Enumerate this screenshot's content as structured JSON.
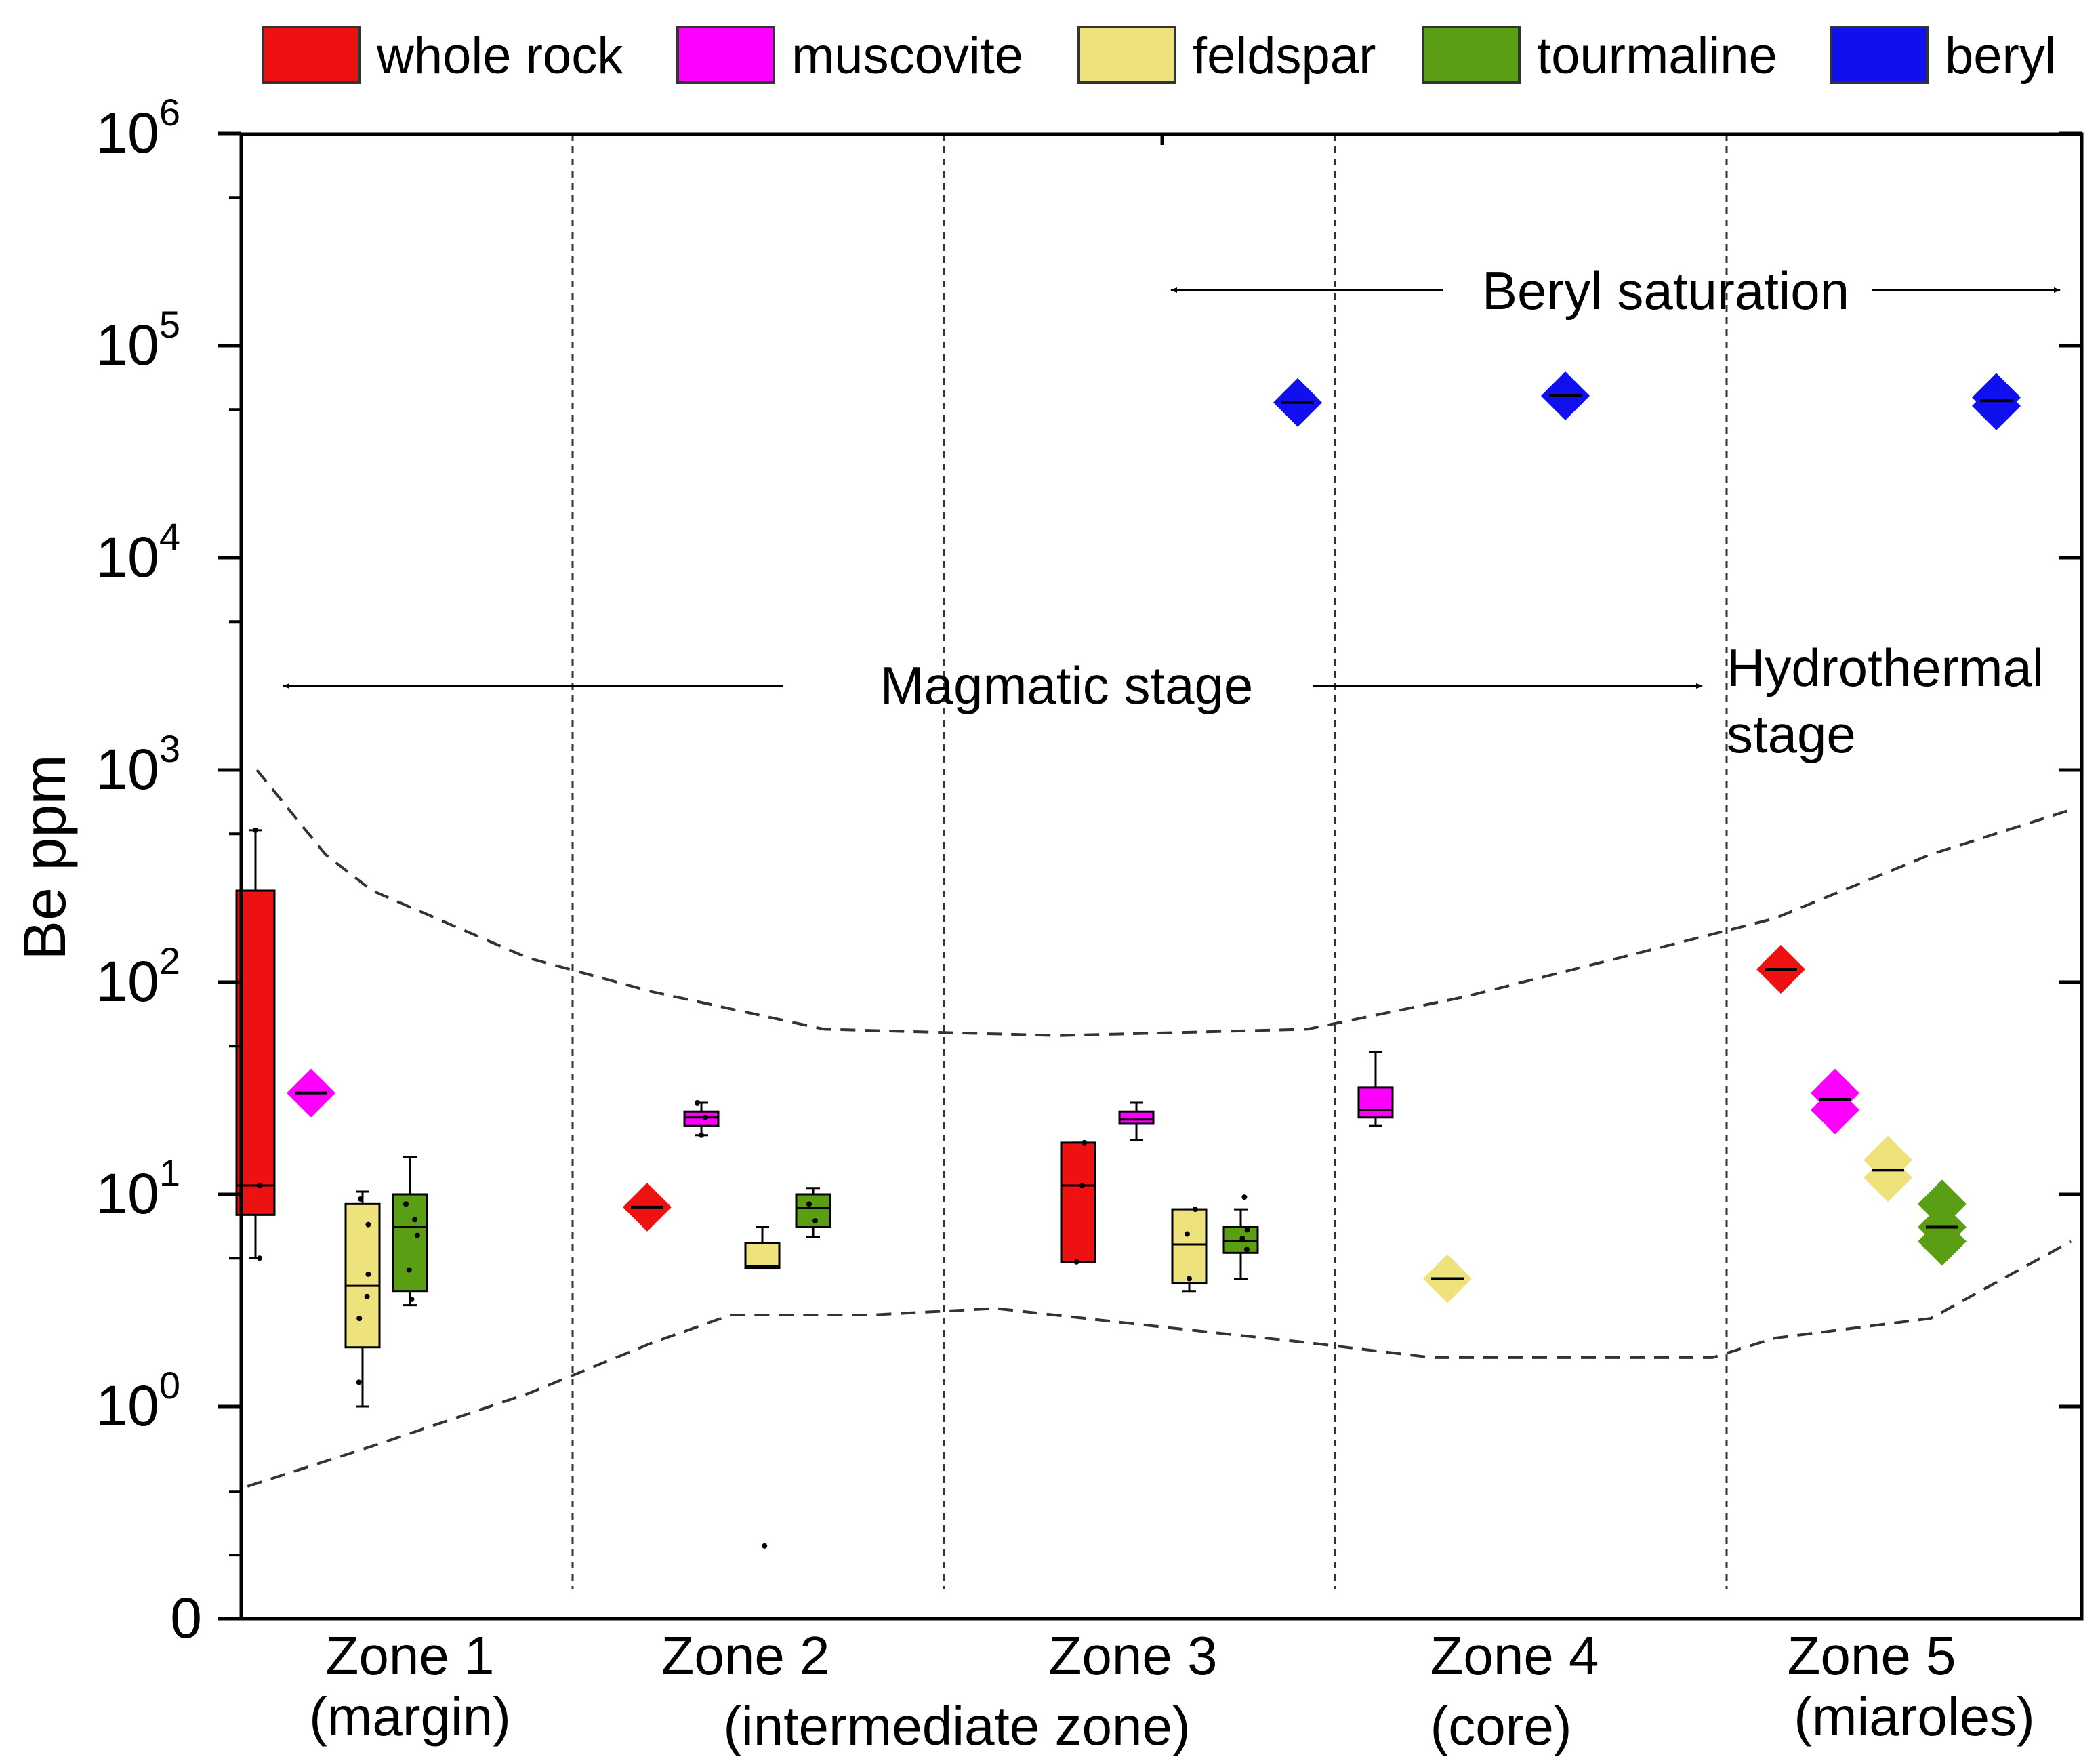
{
  "chart_data": {
    "type": "box",
    "title": "",
    "xlabel": "",
    "ylabel": "Be ppm",
    "yscale": "log (with 0 at the bottom)",
    "ylim": [
      0,
      1000000
    ],
    "y_ticks": [
      {
        "value": 0,
        "base": "0",
        "exp": ""
      },
      {
        "value": 1,
        "base": "10",
        "exp": "0"
      },
      {
        "value": 10,
        "base": "10",
        "exp": "1"
      },
      {
        "value": 100,
        "base": "10",
        "exp": "2"
      },
      {
        "value": 1000,
        "base": "10",
        "exp": "3"
      },
      {
        "value": 10000,
        "base": "10",
        "exp": "4"
      },
      {
        "value": 100000,
        "base": "10",
        "exp": "5"
      },
      {
        "value": 1000000,
        "base": "10",
        "exp": "6"
      }
    ],
    "categories": [
      {
        "name": "Zone 1",
        "sub": "(margin)"
      },
      {
        "name": "Zone 2",
        "sub": "(intermediate zone)"
      },
      {
        "name": "Zone 3",
        "sub": ""
      },
      {
        "name": "Zone 4",
        "sub": "(core)"
      },
      {
        "name": "Zone 5",
        "sub": "(miaroles)"
      }
    ],
    "legend": [
      {
        "key": "whole_rock",
        "label": "whole rock",
        "color": "#ee1111"
      },
      {
        "key": "muscovite",
        "label": "muscovite",
        "color": "#ff00ff"
      },
      {
        "key": "feldspar",
        "label": "feldspar",
        "color": "#eee27c"
      },
      {
        "key": "tourmaline",
        "label": "tourmaline",
        "color": "#5a9e14"
      },
      {
        "key": "beryl",
        "label": "beryl",
        "color": "#1010ee"
      }
    ],
    "series": [
      {
        "zone": "Zone 1",
        "mineral": "whole_rock",
        "kind": "box",
        "min": 5,
        "q1": 8,
        "median": 11,
        "q3": 270,
        "max": 520,
        "points": [
          5,
          11,
          11,
          520
        ]
      },
      {
        "zone": "Zone 1",
        "mineral": "muscovite",
        "kind": "diamond",
        "median": 30,
        "points": [
          30
        ]
      },
      {
        "zone": "Zone 1",
        "mineral": "feldspar",
        "kind": "box",
        "min": 1,
        "q1": 1.9,
        "median": 3.7,
        "q3": 9,
        "max": 10.3,
        "points": [
          1.3,
          2.6,
          3.3,
          4.2,
          7.2,
          9.5
        ]
      },
      {
        "zone": "Zone 1",
        "mineral": "tourmaline",
        "kind": "box",
        "min": 3,
        "q1": 3.5,
        "median": 7,
        "q3": 10,
        "max": 15,
        "points": [
          3.2,
          4.4,
          6.4,
          7.6,
          9
        ]
      },
      {
        "zone": "Zone 2",
        "mineral": "whole_rock",
        "kind": "diamond",
        "median": 8.7,
        "points": [
          8.7
        ]
      },
      {
        "zone": "Zone 2",
        "mineral": "muscovite",
        "kind": "box",
        "min": 19,
        "q1": 21,
        "median": 23,
        "q3": 24.5,
        "max": 27,
        "points": [
          19,
          23,
          27
        ]
      },
      {
        "zone": "Zone 2",
        "mineral": "feldspar",
        "kind": "box",
        "min": 4.5,
        "q1": 4.5,
        "median": 4.6,
        "q3": 5.9,
        "max": 7,
        "points": [
          0.22
        ]
      },
      {
        "zone": "Zone 2",
        "mineral": "tourmaline",
        "kind": "box",
        "min": 6.3,
        "q1": 7,
        "median": 8.6,
        "q3": 10,
        "max": 10.7,
        "points": [
          7.5,
          9
        ]
      },
      {
        "zone": "Zone 3",
        "mineral": "whole_rock",
        "kind": "box",
        "min": 4.8,
        "q1": 4.8,
        "median": 11,
        "q3": 17.5,
        "max": 17.5,
        "points": [
          4.8,
          11,
          17.5
        ]
      },
      {
        "zone": "Zone 3",
        "mineral": "muscovite",
        "kind": "box",
        "min": 18,
        "q1": 21.5,
        "median": 22.5,
        "q3": 24.5,
        "max": 27,
        "points": []
      },
      {
        "zone": "Zone 3",
        "mineral": "feldspar",
        "kind": "box",
        "min": 3.5,
        "q1": 3.8,
        "median": 5.8,
        "q3": 8.5,
        "max": 8.5,
        "points": [
          4,
          6.5,
          8.5
        ]
      },
      {
        "zone": "Zone 3",
        "mineral": "tourmaline",
        "kind": "box",
        "min": 4,
        "q1": 5.3,
        "median": 6,
        "q3": 7,
        "max": 8.5,
        "points": [
          5.5,
          6.2,
          6.8,
          9.7
        ]
      },
      {
        "zone": "Zone 3",
        "mineral": "beryl",
        "kind": "diamond",
        "median": 54000,
        "points": [
          54000
        ]
      },
      {
        "zone": "Zone 4",
        "mineral": "muscovite",
        "kind": "box",
        "min": 21,
        "q1": 23,
        "median": 25,
        "q3": 32,
        "max": 47,
        "points": []
      },
      {
        "zone": "Zone 4",
        "mineral": "feldspar",
        "kind": "diamond",
        "median": 4,
        "points": [
          4
        ]
      },
      {
        "zone": "Zone 4",
        "mineral": "beryl",
        "kind": "diamond",
        "median": 58000,
        "points": [
          58000
        ]
      },
      {
        "zone": "Zone 5",
        "mineral": "whole_rock",
        "kind": "diamond",
        "median": 115,
        "points": [
          115
        ]
      },
      {
        "zone": "Zone 5",
        "mineral": "muscovite",
        "kind": "diamond",
        "median": 28,
        "points": [
          30,
          25
        ]
      },
      {
        "zone": "Zone 5",
        "mineral": "feldspar",
        "kind": "diamond",
        "median": 13,
        "points": [
          14.5,
          12
        ]
      },
      {
        "zone": "Zone 5",
        "mineral": "beryl",
        "kind": "diamond",
        "median": 55000,
        "points": [
          57000,
          52000
        ]
      },
      {
        "zone": "Zone 5",
        "mineral": "tourmaline",
        "kind": "diamond",
        "median": 7,
        "points": [
          9,
          7,
          6
        ]
      }
    ],
    "envelope": {
      "upper": [
        [
          0.13,
          1000
        ],
        [
          0.35,
          400
        ],
        [
          0.5,
          270
        ],
        [
          1.0,
          130
        ],
        [
          1.4,
          90
        ],
        [
          1.95,
          60
        ],
        [
          2.7,
          56
        ],
        [
          3.5,
          60
        ],
        [
          4.0,
          85
        ],
        [
          4.5,
          130
        ],
        [
          5.0,
          200
        ],
        [
          5.5,
          400
        ],
        [
          5.95,
          650
        ]
      ],
      "lower": [
        [
          0.1,
          0.42
        ],
        [
          0.5,
          0.65
        ],
        [
          1.0,
          1.15
        ],
        [
          1.4,
          2
        ],
        [
          1.65,
          2.7
        ],
        [
          2.1,
          2.7
        ],
        [
          2.5,
          2.9
        ],
        [
          3.0,
          2.4
        ],
        [
          3.5,
          2
        ],
        [
          3.9,
          1.7
        ],
        [
          4.3,
          1.7
        ],
        [
          4.8,
          1.7
        ],
        [
          5.0,
          2.1
        ],
        [
          5.5,
          2.6
        ],
        [
          5.95,
          6
        ]
      ]
    },
    "zone_dividers": [
      1.5,
      2.5,
      3.5,
      4.5
    ],
    "annotations": {
      "beryl_saturation": "Beryl saturation",
      "magmatic_stage": "Magmatic stage",
      "hydrothermal_line1": "Hydrothermal",
      "hydrothermal_line2": "stage"
    }
  }
}
